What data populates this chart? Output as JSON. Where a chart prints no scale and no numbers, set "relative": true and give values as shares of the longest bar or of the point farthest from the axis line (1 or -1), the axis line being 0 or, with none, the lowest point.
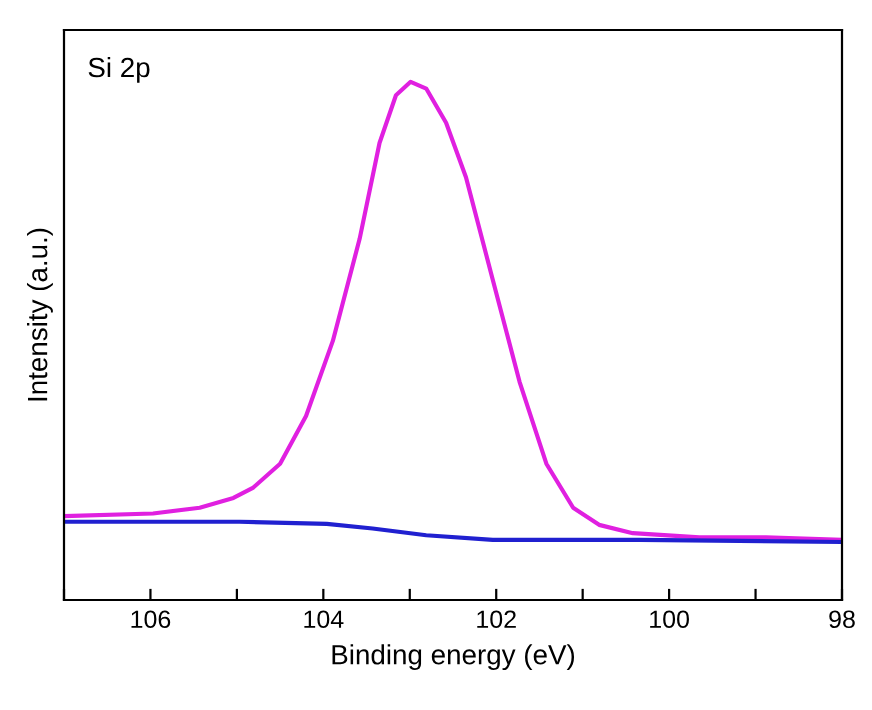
{
  "chart_data": {
    "type": "line",
    "xlabel": "Binding energy (eV)",
    "ylabel": "Intensity (a.u.)",
    "annotations": [
      "Si 2p"
    ],
    "relative": true,
    "tick_labels": "x",
    "grid": false,
    "marker": "none",
    "line_style": "solid",
    "xlim": [
      107,
      98
    ],
    "xticks": [
      {
        "value": 107,
        "label": null
      },
      106,
      {
        "value": 105,
        "label": null
      },
      104,
      {
        "value": 103,
        "label": null
      },
      102,
      {
        "value": 101,
        "label": null
      },
      100,
      {
        "value": 99,
        "label": null
      },
      98
    ],
    "series": [
      {
        "color": "#e020e0",
        "x": [
          107,
          105.97,
          105.43,
          105.04,
          104.81,
          104.5,
          104.2,
          103.89,
          103.58,
          103.35,
          103.16,
          102.99,
          102.81,
          102.58,
          102.35,
          102.04,
          101.73,
          101.42,
          101.11,
          100.81,
          100.42,
          99.65,
          98.88,
          98.0
        ],
        "values": [
          0.162,
          0.167,
          0.178,
          0.197,
          0.217,
          0.263,
          0.355,
          0.5,
          0.697,
          0.882,
          0.974,
          1.0,
          0.987,
          0.921,
          0.816,
          0.618,
          0.421,
          0.263,
          0.178,
          0.145,
          0.129,
          0.121,
          0.121,
          0.116
        ]
      },
      {
        "color": "#2020d0",
        "x": [
          107,
          104.97,
          103.96,
          103.43,
          102.81,
          102.04,
          100.34,
          98.0
        ],
        "values": [
          0.151,
          0.151,
          0.147,
          0.138,
          0.125,
          0.116,
          0.116,
          0.112
        ]
      }
    ]
  }
}
